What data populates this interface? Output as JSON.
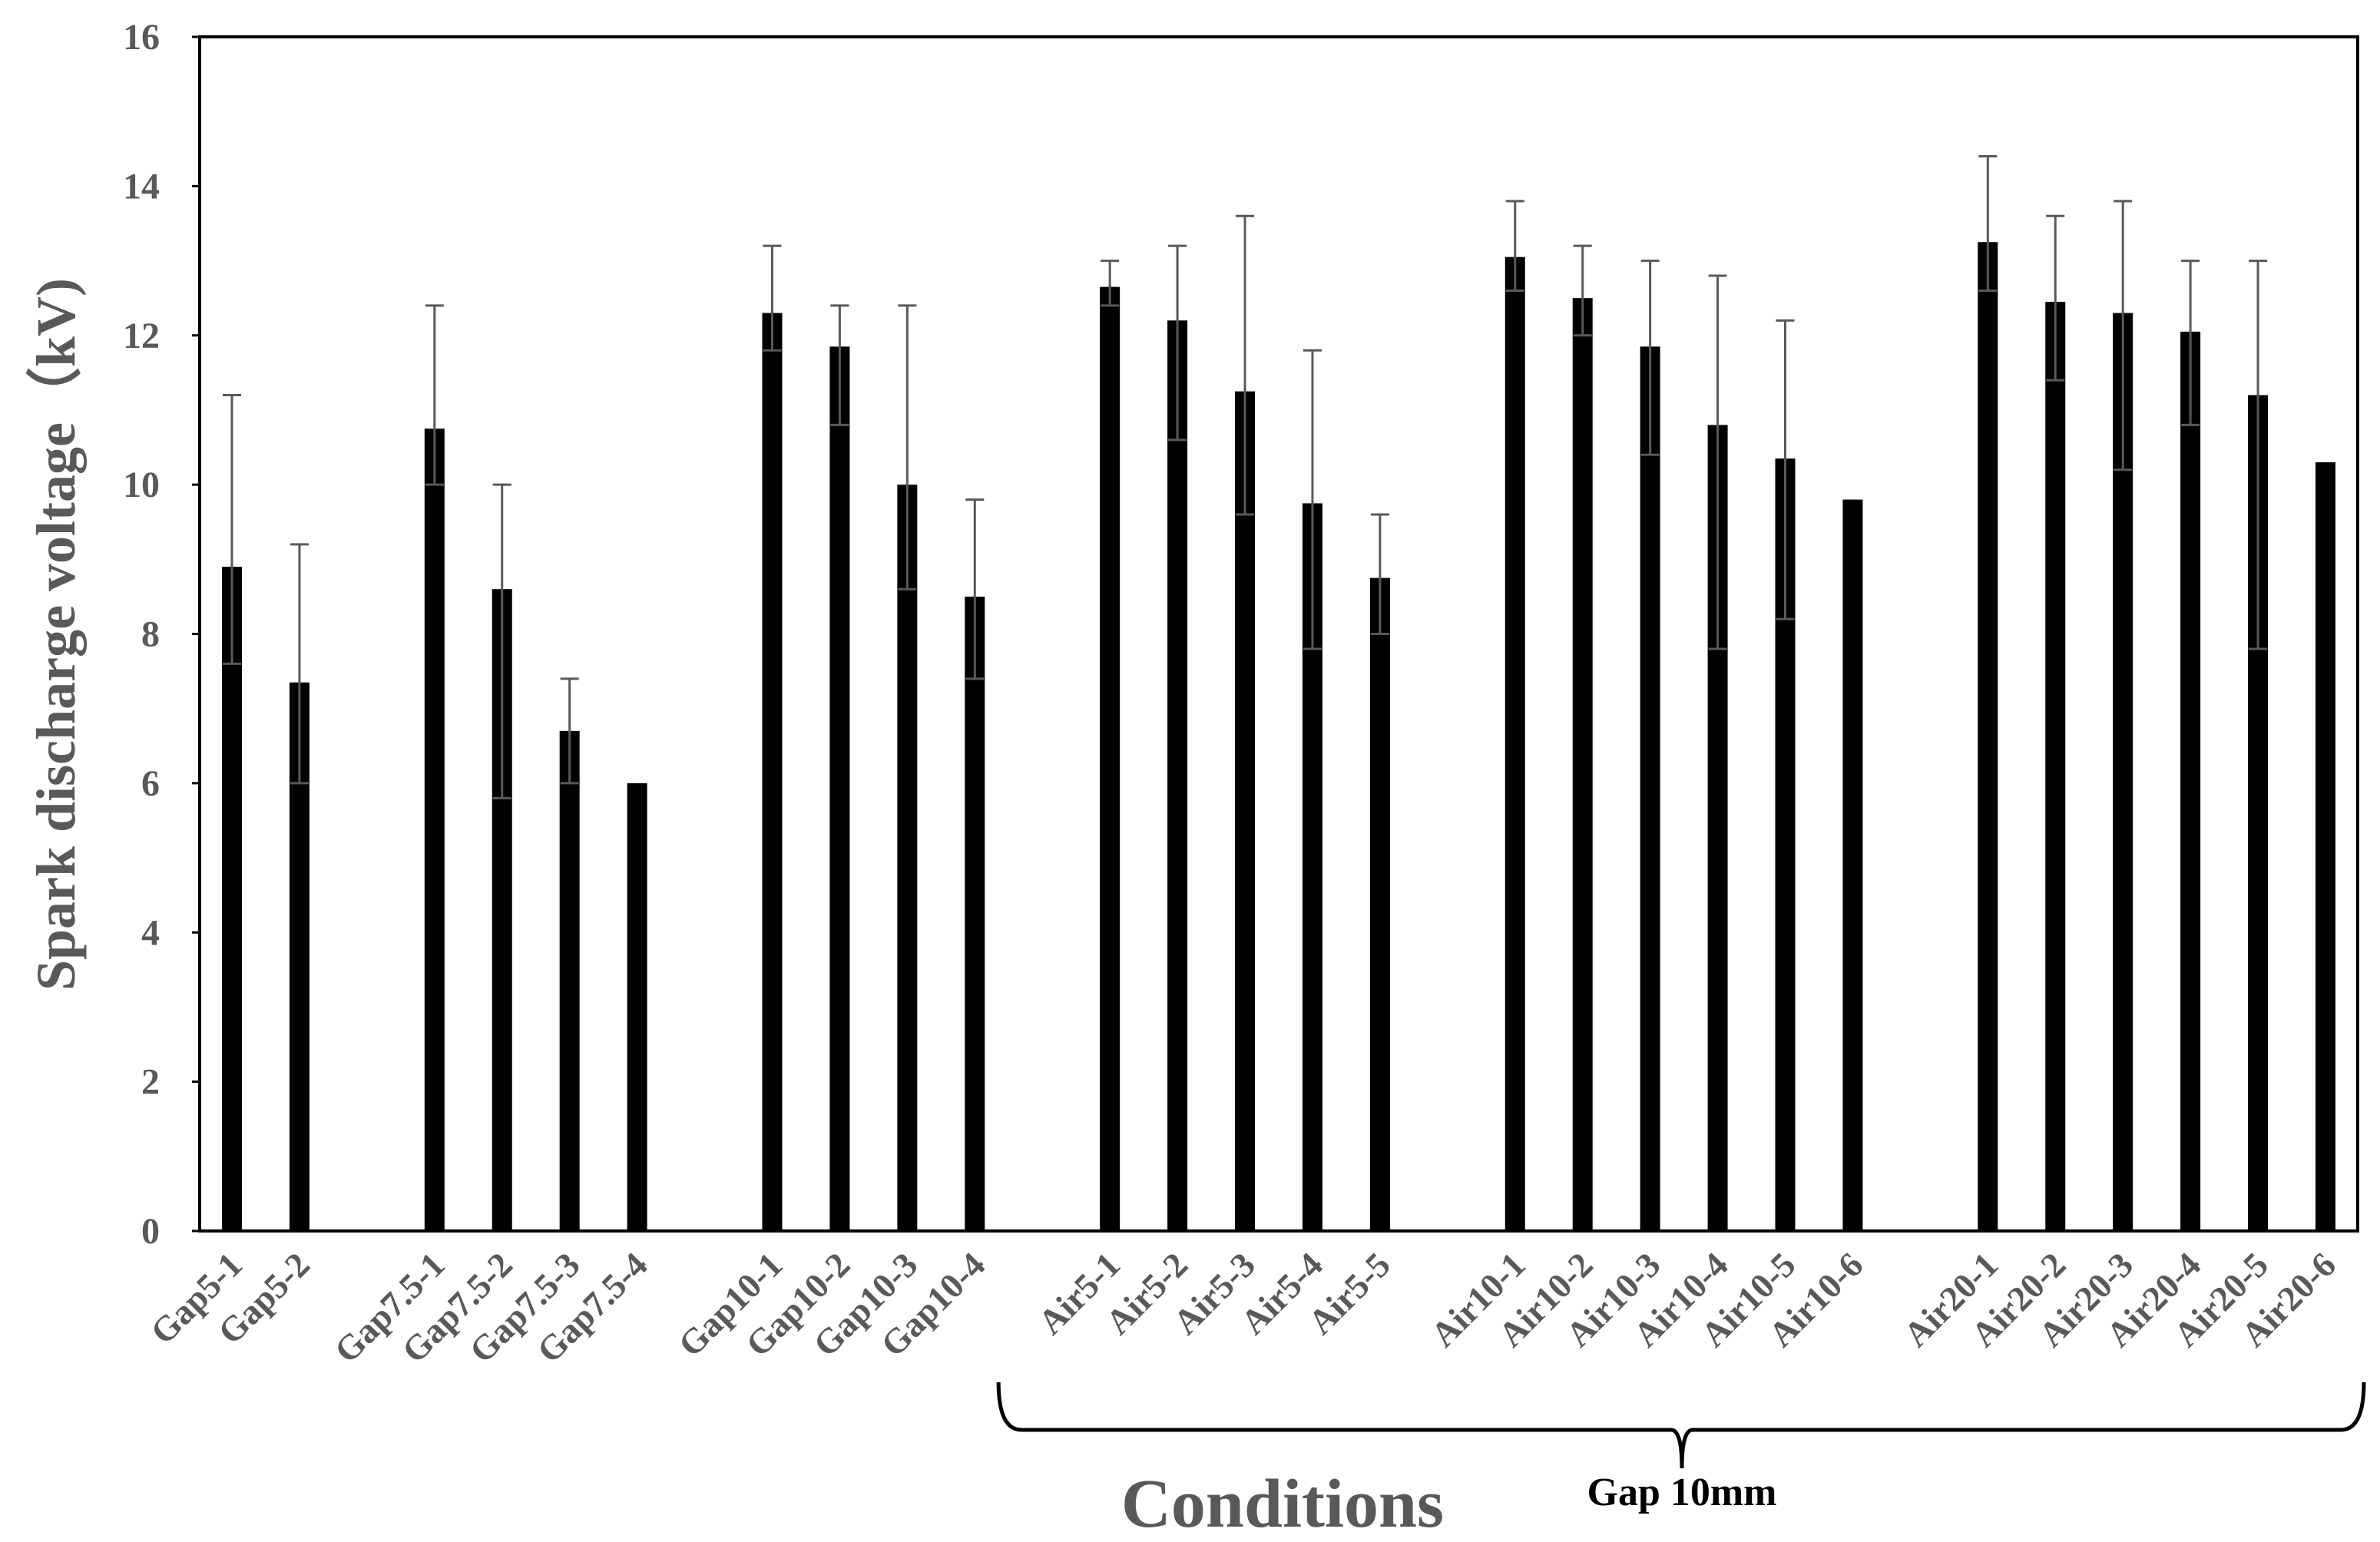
{
  "chart_data": {
    "type": "bar",
    "title": "",
    "xlabel": "Conditions",
    "ylabel": "Spark discharge voltage（kV)",
    "ylim": [
      0,
      16
    ],
    "yticks": [
      0,
      2,
      4,
      6,
      8,
      10,
      12,
      14,
      16
    ],
    "grid": false,
    "legend": null,
    "categories": [
      "Gap5-1",
      "Gap5-2",
      "",
      "Gap7.5-1",
      "Gap7.5-2",
      "Gap7.5-3",
      "Gap7.5-4",
      "",
      "Gap10-1",
      "Gap10-2",
      "Gap10-3",
      "Gap10-4",
      "",
      "Air5-1",
      "Air5-2",
      "Air5-3",
      "Air5-4",
      "Air5-5",
      "",
      "Air10-1",
      "Air10-2",
      "Air10-3",
      "Air10-4",
      "Air10-5",
      "Air10-6",
      "",
      "Air20-1",
      "Air20-2",
      "Air20-3",
      "Air20-4",
      "Air20-5",
      "Air20-6"
    ],
    "values": [
      8.9,
      7.35,
      null,
      10.75,
      8.6,
      6.7,
      6.0,
      null,
      12.3,
      11.85,
      10.0,
      8.5,
      null,
      12.65,
      12.2,
      11.25,
      9.75,
      8.75,
      null,
      13.05,
      12.5,
      11.85,
      10.8,
      10.35,
      9.8,
      null,
      13.25,
      12.45,
      12.3,
      12.05,
      11.2,
      10.3
    ],
    "error_low": [
      7.6,
      6.0,
      null,
      10.0,
      5.8,
      6.0,
      6.0,
      null,
      11.8,
      10.8,
      8.6,
      7.4,
      null,
      12.4,
      10.6,
      9.6,
      7.8,
      8.0,
      null,
      12.6,
      12.0,
      10.4,
      7.8,
      8.2,
      9.8,
      null,
      12.6,
      11.4,
      10.2,
      10.8,
      7.8,
      10.3
    ],
    "error_high": [
      11.2,
      9.2,
      null,
      12.4,
      10.0,
      7.4,
      6.0,
      null,
      13.2,
      12.4,
      12.4,
      9.8,
      null,
      13.0,
      13.2,
      13.6,
      11.8,
      9.6,
      null,
      13.8,
      13.2,
      13.0,
      12.8,
      12.2,
      9.8,
      null,
      14.4,
      13.6,
      13.8,
      13.0,
      13.0,
      10.3
    ],
    "bar_color": "#000000",
    "errorbar_color": "#595959",
    "annotation": {
      "text": "Gap 10mm",
      "spans_from": "Air5-1",
      "spans_to": "Air20-6",
      "style": "curly-brace"
    }
  }
}
